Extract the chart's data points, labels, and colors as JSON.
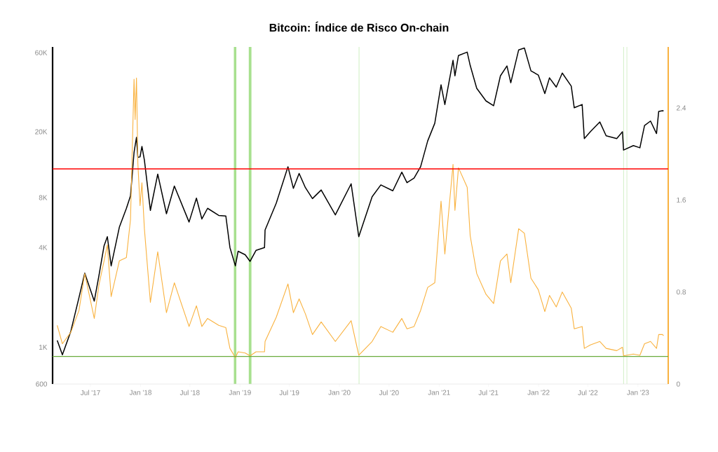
{
  "chart_data": {
    "type": "line",
    "title": "Bitcoin: Índice de Risco On-chain",
    "log": "y",
    "marker": "none",
    "x": [
      "2017-03-01",
      "2017-03-20",
      "2017-04-20",
      "2017-05-20",
      "2017-06-10",
      "2017-07-15",
      "2017-08-01",
      "2017-08-20",
      "2017-09-01",
      "2017-09-15",
      "2017-10-15",
      "2017-11-10",
      "2017-11-25",
      "2017-12-08",
      "2017-12-12",
      "2017-12-17",
      "2017-12-22",
      "2017-12-30",
      "2018-01-06",
      "2018-01-15",
      "2018-02-06",
      "2018-03-05",
      "2018-04-06",
      "2018-05-05",
      "2018-06-28",
      "2018-07-25",
      "2018-08-14",
      "2018-09-04",
      "2018-10-15",
      "2018-11-10",
      "2018-11-25",
      "2018-12-15",
      "2018-12-25",
      "2019-01-20",
      "2019-02-07",
      "2019-03-01",
      "2019-04-01",
      "2019-04-03",
      "2019-05-14",
      "2019-06-26",
      "2019-07-16",
      "2019-08-06",
      "2019-08-29",
      "2019-09-24",
      "2019-10-26",
      "2019-12-17",
      "2020-02-13",
      "2020-03-12",
      "2020-04-30",
      "2020-06-01",
      "2020-07-15",
      "2020-08-17",
      "2020-09-05",
      "2020-10-01",
      "2020-10-25",
      "2020-11-20",
      "2020-12-16",
      "2021-01-08",
      "2021-01-22",
      "2021-02-21",
      "2021-02-28",
      "2021-03-13",
      "2021-04-14",
      "2021-04-25",
      "2021-05-19",
      "2021-06-22",
      "2021-07-20",
      "2021-08-14",
      "2021-09-07",
      "2021-09-21",
      "2021-10-20",
      "2021-11-10",
      "2021-12-04",
      "2021-12-31",
      "2022-01-24",
      "2022-02-10",
      "2022-03-07",
      "2022-03-29",
      "2022-05-01",
      "2022-05-12",
      "2022-06-10",
      "2022-06-18",
      "2022-07-10",
      "2022-08-14",
      "2022-09-06",
      "2022-10-15",
      "2022-11-05",
      "2022-11-09",
      "2022-12-15",
      "2023-01-08",
      "2023-01-25",
      "2023-02-16",
      "2023-03-10",
      "2023-03-18",
      "2023-04-01",
      "2023-04-05"
    ],
    "series": [
      {
        "color": "#f9b23f",
        "axis": "y2",
        "values": [
          0.51,
          0.35,
          0.45,
          0.64,
          0.96,
          0.57,
          0.86,
          1.07,
          1.21,
          0.76,
          1.07,
          1.1,
          1.43,
          2.65,
          2.3,
          2.66,
          1.92,
          1.55,
          1.75,
          1.35,
          0.71,
          1.15,
          0.62,
          0.88,
          0.5,
          0.68,
          0.5,
          0.57,
          0.51,
          0.49,
          0.31,
          0.23,
          0.28,
          0.27,
          0.245,
          0.28,
          0.28,
          0.37,
          0.58,
          0.87,
          0.62,
          0.74,
          0.61,
          0.43,
          0.54,
          0.37,
          0.55,
          0.25,
          0.37,
          0.5,
          0.45,
          0.57,
          0.48,
          0.5,
          0.64,
          0.84,
          0.88,
          1.59,
          1.13,
          1.91,
          1.51,
          1.88,
          1.71,
          1.29,
          0.96,
          0.78,
          0.7,
          1.07,
          1.13,
          0.88,
          1.35,
          1.31,
          0.92,
          0.82,
          0.63,
          0.77,
          0.67,
          0.8,
          0.66,
          0.48,
          0.5,
          0.31,
          0.34,
          0.37,
          0.31,
          0.29,
          0.32,
          0.245,
          0.26,
          0.25,
          0.35,
          0.37,
          0.31,
          0.43,
          0.43,
          0.42
        ]
      },
      {
        "color": "#000000",
        "values": [
          1100,
          900,
          1250,
          2000,
          2800,
          1900,
          2700,
          4100,
          4650,
          3100,
          5300,
          6900,
          8200,
          15000,
          16500,
          18500,
          14000,
          14100,
          16300,
          13500,
          6700,
          11100,
          6400,
          9400,
          5700,
          7950,
          5950,
          6900,
          6250,
          6200,
          4000,
          3100,
          3800,
          3620,
          3300,
          3850,
          4000,
          5100,
          7400,
          12300,
          9100,
          11200,
          9200,
          7900,
          8900,
          6300,
          9700,
          4650,
          8100,
          9550,
          8800,
          11400,
          9850,
          10500,
          12300,
          17600,
          22500,
          38400,
          29200,
          54000,
          43500,
          57700,
          60500,
          50300,
          36600,
          30700,
          28700,
          43500,
          49900,
          39500,
          62400,
          64000,
          46600,
          44000,
          34000,
          42300,
          37200,
          45200,
          37700,
          27900,
          29200,
          18200,
          20000,
          22900,
          18900,
          18200,
          20000,
          15500,
          16500,
          16000,
          21800,
          23200,
          19500,
          26500,
          26800,
          26700
        ]
      }
    ],
    "xlim": [
      "2017-02-12",
      "2023-04-22"
    ],
    "xticks": [
      {
        "value": "2017-07-01",
        "label": "Jul '17"
      },
      {
        "value": "2018-01-01",
        "label": "Jan '18"
      },
      {
        "value": "2018-07-01",
        "label": "Jul '18"
      },
      {
        "value": "2019-01-01",
        "label": "Jan '19"
      },
      {
        "value": "2019-07-01",
        "label": "Jul '19"
      },
      {
        "value": "2020-01-01",
        "label": "Jan '20"
      },
      {
        "value": "2020-07-01",
        "label": "Jul '20"
      },
      {
        "value": "2021-01-01",
        "label": "Jan '21"
      },
      {
        "value": "2021-07-01",
        "label": "Jul '21"
      },
      {
        "value": "2022-01-01",
        "label": "Jan '22"
      },
      {
        "value": "2022-07-01",
        "label": "Jul '22"
      },
      {
        "value": "2023-01-01",
        "label": "Jan '23"
      }
    ],
    "ylim": [
      600,
      65000
    ],
    "yticks": [
      600,
      {
        "value": 1000,
        "label": "1K"
      },
      {
        "value": 4000,
        "label": "4K"
      },
      {
        "value": 8000,
        "label": "8K"
      },
      {
        "value": 20000,
        "label": "20K"
      },
      {
        "value": 60000,
        "label": "60K"
      }
    ],
    "y2lim": [
      0,
      2.93
    ],
    "y2ticks": [
      0,
      0.8,
      1.6,
      2.4
    ],
    "ref_lines": [
      {
        "axis": "y2",
        "value": 1.87,
        "color": "#ff0000"
      },
      {
        "axis": "y2",
        "value": 0.24,
        "color": "#6aab3c"
      },
      {
        "axis": "x",
        "value": "2020-03-13",
        "color": "#cdeec0"
      },
      {
        "axis": "x",
        "value": "2022-11-09",
        "color": "#cdeec0"
      },
      {
        "axis": "x",
        "value": "2022-11-21",
        "color": "#cdeec0"
      }
    ],
    "bands": [
      {
        "axis": "x",
        "from": "2018-12-09",
        "to": "2018-12-19",
        "color": "#a8e08f"
      },
      {
        "axis": "x",
        "from": "2019-02-02",
        "to": "2019-02-12",
        "color": "#a8e08f"
      }
    ]
  }
}
